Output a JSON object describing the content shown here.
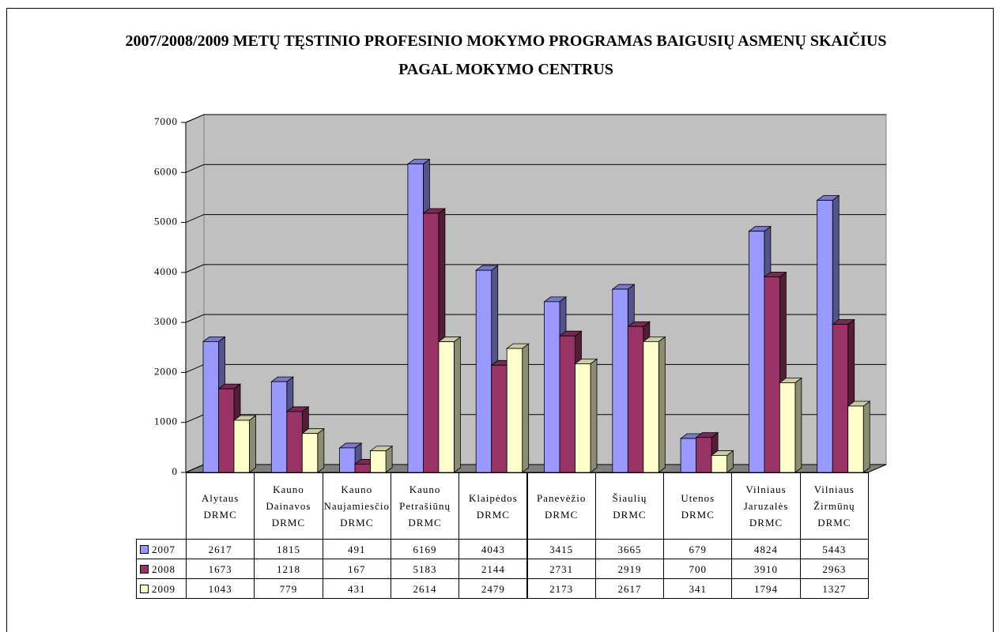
{
  "chart_data": {
    "type": "bar3d",
    "title": "2007/2008/2009 METŲ TĘSTINIO PROFESINIO MOKYMO PROGRAMAS BAIGUSIŲ ASMENŲ SKAIČIUS PAGAL MOKYMO CENTRUS",
    "categories": [
      "Alytaus DRMC",
      "Kauno Dainavos DRMC",
      "Kauno Naujamiesčio DRMC",
      "Kauno Petrašiūnų DRMC",
      "Klaipėdos DRMC",
      "Panevėžio DRMC",
      "Šiaulių DRMC",
      "Utenos DRMC",
      "Vilniaus Jaruzalės DRMC",
      "Vilniaus Žirmūnų DRMC"
    ],
    "series": [
      {
        "name": "2007",
        "color": "#9999ff",
        "values": [
          2617,
          1815,
          491,
          6169,
          4043,
          3415,
          3665,
          679,
          4824,
          5443
        ]
      },
      {
        "name": "2008",
        "color": "#993366",
        "values": [
          1673,
          1218,
          167,
          5183,
          2144,
          2731,
          2919,
          700,
          3910,
          2963
        ]
      },
      {
        "name": "2009",
        "color": "#ffffcc",
        "values": [
          1043,
          779,
          431,
          2614,
          2479,
          2173,
          2617,
          341,
          1794,
          1327
        ]
      }
    ],
    "ylim": [
      0,
      7000
    ],
    "yticks": [
      0,
      1000,
      2000,
      3000,
      4000,
      5000,
      6000,
      7000
    ],
    "grid": true
  }
}
